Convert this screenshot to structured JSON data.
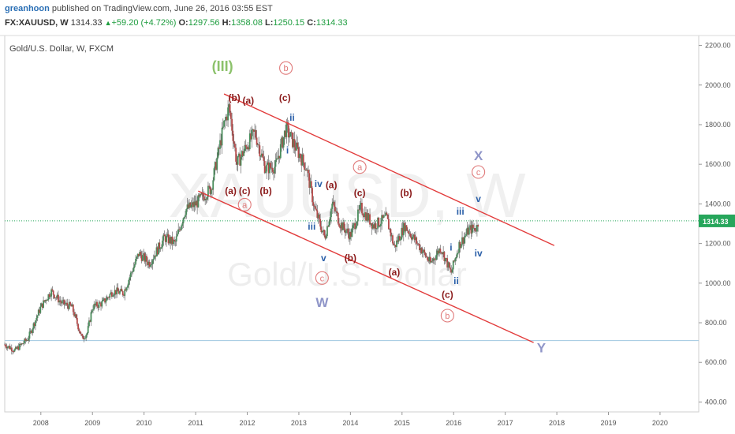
{
  "header": {
    "username": "greanhoon",
    "published_text": " published on TradingView.com, June 26, 2016 03:55 EST",
    "symbol": "FX:XAUUSD, W",
    "price": "1314.33",
    "change": "+59.20 (+4.72%)",
    "open_label": "O:",
    "open_value": "1297.56",
    "high_label": "H:",
    "high_value": "1358.08",
    "low_label": "L:",
    "low_value": "1250.15",
    "close_label": "C:",
    "close_value": "1314.33"
  },
  "chart_data": {
    "type": "candlestick",
    "title": "Gold/U.S. Dollar, W, FXCM",
    "watermark": {
      "line1": "XAUUSD, W",
      "line2": "Gold/U.S. Dollar"
    },
    "ylim": [
      350,
      2250
    ],
    "xlim": [
      2007.3,
      2020.75
    ],
    "y_ticks": [
      "400.00",
      "600.00",
      "800.00",
      "1000.00",
      "1200.00",
      "1400.00",
      "1600.00",
      "1800.00",
      "2000.00",
      "2200.00"
    ],
    "x_ticks": [
      "2008",
      "2009",
      "2010",
      "2011",
      "2012",
      "2013",
      "2014",
      "2015",
      "2016",
      "2017",
      "2018",
      "2019",
      "2020"
    ],
    "last_price": {
      "value": 1314.33,
      "label": "1314.33",
      "color": "#26a65b"
    },
    "horizontal_line": {
      "value": 710,
      "color": "#9fc7e0"
    },
    "price_path": [
      [
        2007.3,
        690
      ],
      [
        2007.5,
        660
      ],
      [
        2007.75,
        720
      ],
      [
        2008.0,
        880
      ],
      [
        2008.2,
        960
      ],
      [
        2008.4,
        900
      ],
      [
        2008.6,
        880
      ],
      [
        2008.8,
        720
      ],
      [
        2008.9,
        750
      ],
      [
        2009.0,
        880
      ],
      [
        2009.2,
        900
      ],
      [
        2009.4,
        960
      ],
      [
        2009.6,
        950
      ],
      [
        2009.9,
        1150
      ],
      [
        2010.1,
        1100
      ],
      [
        2010.4,
        1230
      ],
      [
        2010.6,
        1200
      ],
      [
        2010.8,
        1370
      ],
      [
        2011.0,
        1400
      ],
      [
        2011.3,
        1480
      ],
      [
        2011.55,
        1800
      ],
      [
        2011.65,
        1890
      ],
      [
        2011.8,
        1600
      ],
      [
        2012.0,
        1700
      ],
      [
        2012.15,
        1760
      ],
      [
        2012.35,
        1580
      ],
      [
        2012.55,
        1590
      ],
      [
        2012.75,
        1780
      ],
      [
        2012.95,
        1680
      ],
      [
        2013.15,
        1580
      ],
      [
        2013.3,
        1380
      ],
      [
        2013.5,
        1230
      ],
      [
        2013.65,
        1400
      ],
      [
        2013.8,
        1300
      ],
      [
        2014.0,
        1240
      ],
      [
        2014.2,
        1380
      ],
      [
        2014.45,
        1290
      ],
      [
        2014.7,
        1330
      ],
      [
        2014.85,
        1180
      ],
      [
        2015.05,
        1290
      ],
      [
        2015.3,
        1200
      ],
      [
        2015.55,
        1100
      ],
      [
        2015.75,
        1180
      ],
      [
        2015.95,
        1050
      ],
      [
        2016.1,
        1190
      ],
      [
        2016.3,
        1270
      ],
      [
        2016.45,
        1280
      ],
      [
        2016.48,
        1314
      ]
    ],
    "trendlines": [
      {
        "color": "#e23b3b",
        "points": [
          [
            2011.55,
            1955
          ],
          [
            2017.95,
            1190
          ]
        ]
      },
      {
        "color": "#e23b3b",
        "points": [
          [
            2011.05,
            1465
          ],
          [
            2017.55,
            700
          ]
        ]
      }
    ],
    "wave_labels": [
      {
        "text": "(III)",
        "x": 2011.52,
        "y": 2070,
        "color": "#8cc26b",
        "size": 18
      },
      {
        "text": "(b)",
        "x": 2011.75,
        "y": 1920,
        "color": "#8b1a1a",
        "size": 12
      },
      {
        "text": "(a)",
        "x": 2012.02,
        "y": 1905,
        "color": "#8b1a1a",
        "size": 12
      },
      {
        "text": "(c)",
        "x": 2012.73,
        "y": 1920,
        "color": "#8b1a1a",
        "size": 12
      },
      {
        "text": "ii",
        "x": 2012.87,
        "y": 1820,
        "color": "#2a5fa8",
        "size": 12
      },
      {
        "text": "i",
        "x": 2012.78,
        "y": 1655,
        "color": "#2a5fa8",
        "size": 12
      },
      {
        "text": "(a)",
        "x": 2011.68,
        "y": 1450,
        "color": "#8b1a1a",
        "size": 12
      },
      {
        "text": "(c)",
        "x": 2011.95,
        "y": 1450,
        "color": "#8b1a1a",
        "size": 12
      },
      {
        "text": "(b)",
        "x": 2012.36,
        "y": 1450,
        "color": "#8b1a1a",
        "size": 12
      },
      {
        "text": "iv",
        "x": 2013.38,
        "y": 1485,
        "color": "#2a5fa8",
        "size": 12
      },
      {
        "text": "(a)",
        "x": 2013.63,
        "y": 1480,
        "color": "#8b1a1a",
        "size": 12
      },
      {
        "text": "(c)",
        "x": 2014.18,
        "y": 1440,
        "color": "#8b1a1a",
        "size": 12
      },
      {
        "text": "(b)",
        "x": 2015.08,
        "y": 1440,
        "color": "#8b1a1a",
        "size": 12
      },
      {
        "text": "iii",
        "x": 2013.25,
        "y": 1270,
        "color": "#2a5fa8",
        "size": 12
      },
      {
        "text": "v",
        "x": 2013.48,
        "y": 1110,
        "color": "#2a5fa8",
        "size": 12
      },
      {
        "text": "(b)",
        "x": 2014.0,
        "y": 1110,
        "color": "#8b1a1a",
        "size": 12
      },
      {
        "text": "(a)",
        "x": 2014.85,
        "y": 1040,
        "color": "#8b1a1a",
        "size": 12
      },
      {
        "text": "i",
        "x": 2015.95,
        "y": 1165,
        "color": "#2a5fa8",
        "size": 12
      },
      {
        "text": "ii",
        "x": 2016.05,
        "y": 995,
        "color": "#2a5fa8",
        "size": 12
      },
      {
        "text": "(c)",
        "x": 2015.88,
        "y": 925,
        "color": "#8b1a1a",
        "size": 12
      },
      {
        "text": "iii",
        "x": 2016.13,
        "y": 1345,
        "color": "#2a5fa8",
        "size": 12
      },
      {
        "text": "v",
        "x": 2016.48,
        "y": 1410,
        "color": "#2a5fa8",
        "size": 12
      },
      {
        "text": "iv",
        "x": 2016.48,
        "y": 1135,
        "color": "#2a5fa8",
        "size": 12
      },
      {
        "text": "X",
        "x": 2016.48,
        "y": 1620,
        "color": "#8f95c8",
        "size": 17
      },
      {
        "text": "W",
        "x": 2013.45,
        "y": 880,
        "color": "#8f95c8",
        "size": 17
      },
      {
        "text": "Y",
        "x": 2017.7,
        "y": 650,
        "color": "#8f95c8",
        "size": 17
      }
    ],
    "circled_labels": [
      {
        "text": "b",
        "x": 2012.75,
        "y": 2070,
        "color": "#e07a7a"
      },
      {
        "text": "a",
        "x": 2014.18,
        "y": 1570,
        "color": "#e07a7a"
      },
      {
        "text": "a",
        "x": 2011.95,
        "y": 1380,
        "color": "#e07a7a"
      },
      {
        "text": "c",
        "x": 2016.48,
        "y": 1545,
        "color": "#e07a7a"
      },
      {
        "text": "c",
        "x": 2013.45,
        "y": 1010,
        "color": "#e07a7a"
      },
      {
        "text": "b",
        "x": 2015.88,
        "y": 820,
        "color": "#e07a7a"
      }
    ]
  }
}
